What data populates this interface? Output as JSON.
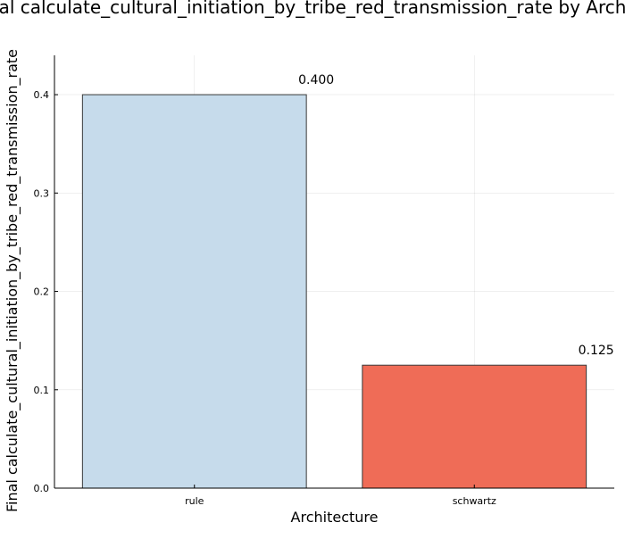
{
  "chart_data": {
    "type": "bar",
    "title": "Final calculate_cultural_initiation_by_tribe_red_transmission_rate by Architecture",
    "xlabel": "Architecture",
    "ylabel": "Final calculate_cultural_initiation_by_tribe_red_transmission_rate",
    "categories": [
      "rule",
      "schwartz"
    ],
    "values": [
      0.4,
      0.125
    ],
    "data_labels": [
      "0.400",
      "0.125"
    ],
    "bar_colors": [
      "#c6dbeb",
      "#ef6c57"
    ],
    "ylim": [
      0,
      0.44
    ],
    "yticks": [
      0.0,
      0.1,
      0.2,
      0.3,
      0.4
    ],
    "ytick_labels": [
      "0.0",
      "0.1",
      "0.2",
      "0.3",
      "0.4"
    ],
    "grid": true,
    "legend": "none"
  }
}
